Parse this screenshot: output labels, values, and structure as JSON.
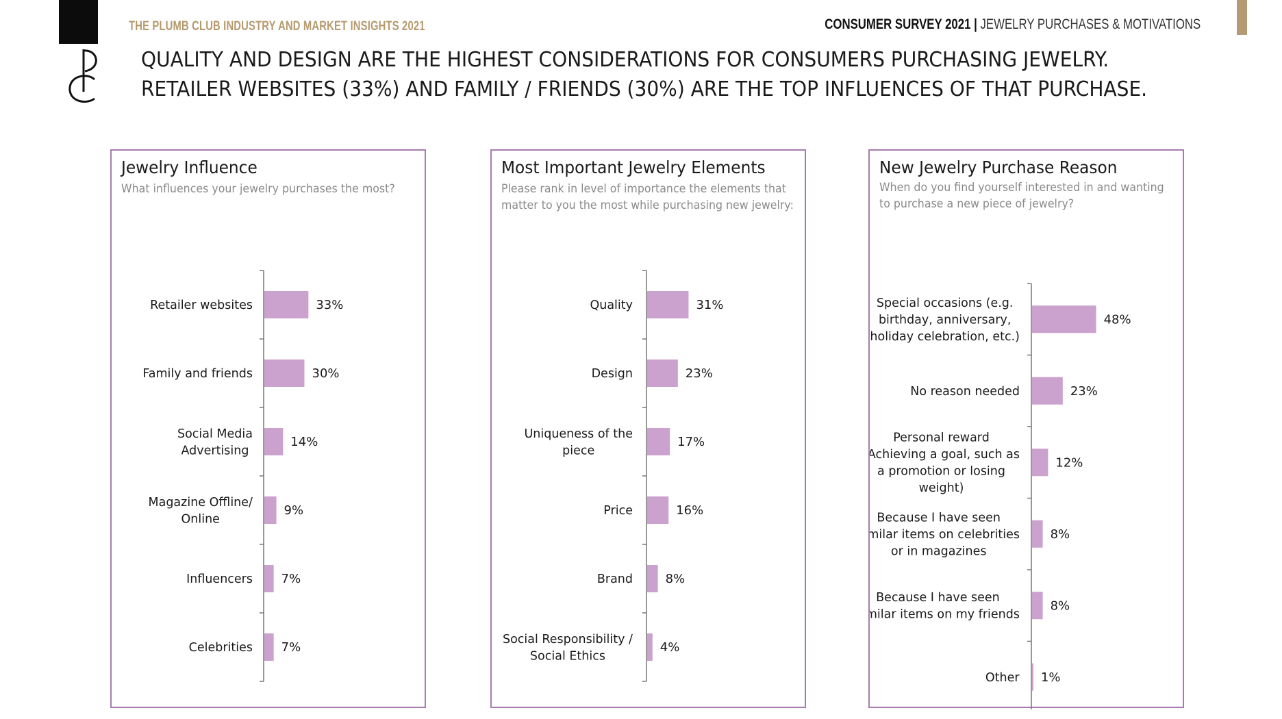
{
  "header": {
    "brand_left": "THE PLUMB CLUB INDUSTRY AND MARKET INSIGHTS 2021",
    "brand_right_strong": "CONSUMER SURVEY 2021 |",
    "brand_right_light": "JEWELRY PURCHASES & MOTIVATIONS",
    "logo_letters": "PC",
    "headline_line1": "QUALITY AND DESIGN ARE THE HIGHEST CONSIDERATIONS FOR CONSUMERS PURCHASING JEWELRY.",
    "headline_line2": "RETAILER WEBSITES (33%) AND FAMILY / FRIENDS (30%) ARE THE TOP INFLUENCES OF THAT PURCHASE."
  },
  "colors": {
    "bar": "#cba1cd",
    "panel_border": "#a77bb0",
    "brand_gold": "#b59a6d",
    "axis": "#777777"
  },
  "chart_data": [
    {
      "type": "bar",
      "orientation": "horizontal",
      "title": "Jewelry Influence",
      "subtitle": "What influences your jewelry purchases the most?",
      "categories": [
        [
          "Retailer websites"
        ],
        [
          "Family and friends"
        ],
        [
          "Social Media",
          "Advertising"
        ],
        [
          "Magazine Offline/",
          "Online"
        ],
        [
          "Influencers"
        ],
        [
          "Celebrities"
        ]
      ],
      "values": [
        33,
        30,
        14,
        9,
        7,
        7
      ],
      "data_labels": [
        "33%",
        "30%",
        "14%",
        "9%",
        "7%",
        "7%"
      ],
      "xlim": [
        0,
        100
      ],
      "grid": false
    },
    {
      "type": "bar",
      "orientation": "horizontal",
      "title": "Most Important Jewelry Elements",
      "subtitle": "Please rank in level of importance the elements that matter to you the most while purchasing new jewelry:",
      "categories": [
        [
          "Quality"
        ],
        [
          "Design"
        ],
        [
          "Uniqueness of the",
          "piece"
        ],
        [
          "Price"
        ],
        [
          "Brand"
        ],
        [
          "Social Responsibility /",
          "Social Ethics"
        ]
      ],
      "values": [
        31,
        23,
        17,
        16,
        8,
        4
      ],
      "data_labels": [
        "31%",
        "23%",
        "17%",
        "16%",
        "8%",
        "4%"
      ],
      "xlim": [
        0,
        100
      ],
      "grid": false
    },
    {
      "type": "bar",
      "orientation": "horizontal",
      "title": "New Jewelry Purchase Reason",
      "subtitle": "When do you find yourself interested in and wanting to purchase a new piece of jewelry?",
      "categories": [
        [
          "Special occasions (e.g.",
          "birthday, anniversary,",
          "holiday celebration, etc.)"
        ],
        [
          "No reason needed"
        ],
        [
          "Personal reward",
          "(Achieving a goal, such as",
          "a promotion or losing",
          "weight)"
        ],
        [
          "Because I have seen",
          "similar items on celebrities",
          "or in magazines"
        ],
        [
          "Because I have seen",
          "similar items on my friends"
        ],
        [
          "Other"
        ]
      ],
      "values": [
        48,
        23,
        12,
        8,
        8,
        1
      ],
      "data_labels": [
        "48%",
        "23%",
        "12%",
        "8%",
        "8%",
        "1%"
      ],
      "xlim": [
        0,
        100
      ],
      "grid": false
    }
  ]
}
